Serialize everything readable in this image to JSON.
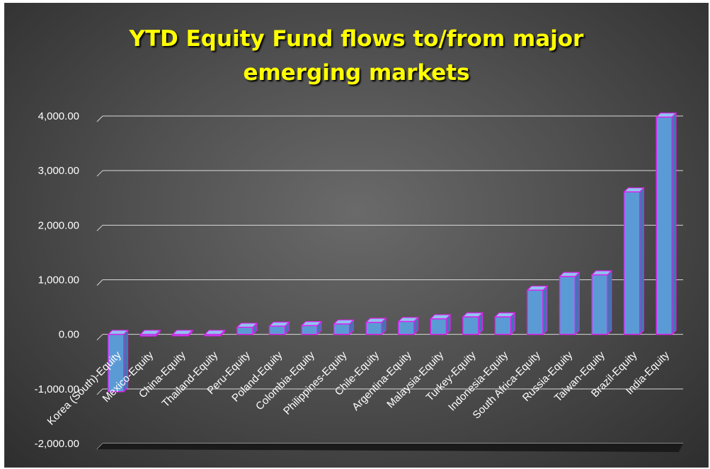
{
  "chart_data": {
    "type": "bar",
    "title": "YTD Equity Fund flows to/from major emerging markets",
    "title_lines": [
      "YTD Equity Fund flows to/from major",
      "emerging markets"
    ],
    "categories": [
      "Korea (South)-Equity",
      "Mexico-Equity",
      "China-Equity",
      "Thailand-Equity",
      "Peru-Equity",
      "Poland-Equity",
      "Colombia-Equity",
      "Philippines-Equity",
      "Chile-Equity",
      "Argentina-Equity",
      "Malaysia-Equity",
      "Turkey-Equity",
      "Indonesia-Equity",
      "South Africa-Equity",
      "Russia-Equity",
      "Taiwan-Equity",
      "Brazil-Equity",
      "India-Equity"
    ],
    "values": [
      -1050,
      -30,
      -15,
      -15,
      130,
      150,
      160,
      190,
      220,
      235,
      285,
      320,
      320,
      810,
      1060,
      1090,
      2610,
      3980
    ],
    "ylim": [
      -2000,
      4000
    ],
    "yticks": [
      "4,000.00",
      "3,000.00",
      "2,000.00",
      "1,000.00",
      "0.00",
      "-1,000.00",
      "-2,000.00"
    ],
    "ytick_values": [
      4000,
      3000,
      2000,
      1000,
      0,
      -1000,
      -2000
    ],
    "grid": true,
    "colors": {
      "bar_front": "#5b9bd5",
      "bar_light": "#8fc3f0",
      "bar_edge": "#e020f0",
      "title": "#ffff00",
      "background": "#4f4f4f",
      "grid": "#d9d9d9"
    }
  }
}
